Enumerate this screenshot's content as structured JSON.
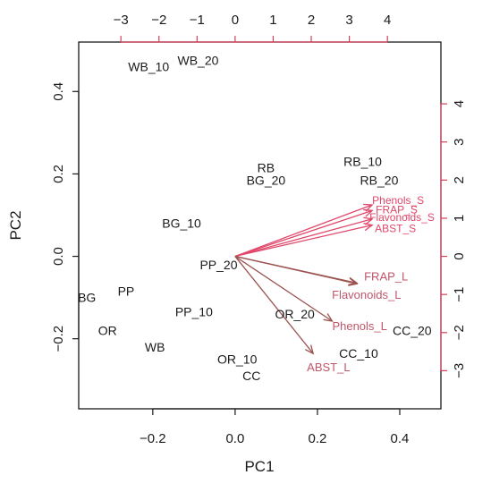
{
  "chart_data": {
    "type": "scatter",
    "subtype": "pca-biplot",
    "xlabel": "PC1",
    "ylabel": "PC2",
    "xlim": [
      -0.38,
      0.5
    ],
    "ylim": [
      -0.37,
      0.52
    ],
    "x_ticks": [
      -0.2,
      0.0,
      0.2,
      0.4
    ],
    "x_tick_labels": [
      "−0.2",
      "0.0",
      "0.2",
      "0.4"
    ],
    "y_ticks": [
      -0.2,
      0.0,
      0.2,
      0.4
    ],
    "y_tick_labels": [
      "−0.2",
      "0.0",
      "0.2",
      "0.4"
    ],
    "top_ticks": [
      -3,
      -2,
      -1,
      0,
      1,
      2,
      3,
      4
    ],
    "top_tick_labels": [
      "−3",
      "−2",
      "−1",
      "0",
      "1",
      "2",
      "3",
      "4"
    ],
    "right_ticks": [
      -3,
      -2,
      -1,
      0,
      1,
      2,
      3,
      4
    ],
    "right_tick_labels": [
      "−3",
      "−2",
      "−1",
      "0",
      "1",
      "2",
      "3",
      "4"
    ],
    "loading_scale_factor": 0.0925,
    "observations": [
      {
        "label": "WB_10",
        "x": -0.21,
        "y": 0.46
      },
      {
        "label": "WB_20",
        "x": -0.09,
        "y": 0.475
      },
      {
        "label": "RB",
        "x": 0.075,
        "y": 0.215
      },
      {
        "label": "BG_20",
        "x": 0.075,
        "y": 0.185
      },
      {
        "label": "RB_10",
        "x": 0.31,
        "y": 0.23
      },
      {
        "label": "RB_20",
        "x": 0.35,
        "y": 0.185
      },
      {
        "label": "BG_10",
        "x": -0.13,
        "y": 0.08
      },
      {
        "label": "PP_20",
        "x": -0.04,
        "y": -0.02
      },
      {
        "label": "BG",
        "x": -0.36,
        "y": -0.1
      },
      {
        "label": "PP",
        "x": -0.265,
        "y": -0.085
      },
      {
        "label": "PP_10",
        "x": -0.1,
        "y": -0.135
      },
      {
        "label": "OR",
        "x": -0.31,
        "y": -0.18
      },
      {
        "label": "WB",
        "x": -0.195,
        "y": -0.22
      },
      {
        "label": "OR_20",
        "x": 0.145,
        "y": -0.14
      },
      {
        "label": "OR_10",
        "x": 0.005,
        "y": -0.25
      },
      {
        "label": "CC",
        "x": 0.04,
        "y": -0.29
      },
      {
        "label": "CC_10",
        "x": 0.3,
        "y": -0.235
      },
      {
        "label": "CC_20",
        "x": 0.43,
        "y": -0.18
      }
    ],
    "loadings_set_s": [
      {
        "label": "Phenols_S",
        "x": 3.6,
        "y": 1.35
      },
      {
        "label": "FRAP_S",
        "x": 3.6,
        "y": 1.2
      },
      {
        "label": "Flavonoids_S",
        "x": 3.6,
        "y": 0.98
      },
      {
        "label": "ABST_S",
        "x": 3.6,
        "y": 0.82
      }
    ],
    "loadings_set_l": [
      {
        "label": "FRAP_L",
        "x": 3.2,
        "y": -0.7
      },
      {
        "label": "Flavonoids_L",
        "x": 3.2,
        "y": -0.72
      },
      {
        "label": "Phenols_L",
        "x": 2.55,
        "y": -1.7
      },
      {
        "label": "ABST_L",
        "x": 2.05,
        "y": -2.55
      }
    ],
    "colors": {
      "observations": "#1a1a1a",
      "loadings_s": "#e0476a",
      "loadings_l": "#9c5450",
      "secondary_axes": "#d6405a"
    }
  }
}
